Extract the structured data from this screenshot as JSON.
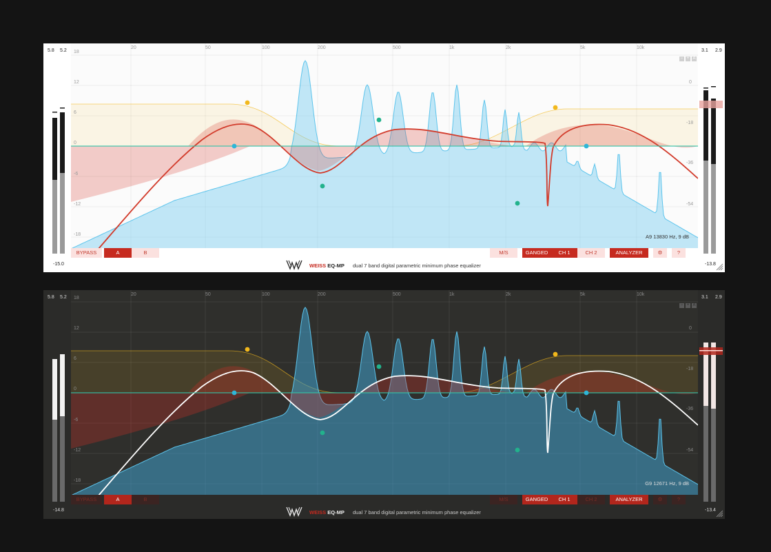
{
  "panels": [
    {
      "theme": "light",
      "left_meter": {
        "peak_l": "5.8",
        "peak_r": "5.2",
        "level": "-15.0"
      },
      "right_meter": {
        "peak_l": "3.1",
        "peak_r": "2.9",
        "level": "-13.8"
      },
      "freq_ticks": [
        "20",
        "50",
        "100",
        "200",
        "500",
        "1k",
        "2k",
        "5k",
        "10k"
      ],
      "db_left_ticks": [
        "18",
        "12",
        "6",
        "0",
        "-6",
        "-12",
        "-18"
      ],
      "db_right_ticks": [
        "0",
        "-18",
        "-36",
        "-54"
      ],
      "readout": "A9 13830 Hz, 9 dB",
      "buttons": {
        "bypass": "BYPASS",
        "a": "A",
        "b": "B",
        "ms": "M/S",
        "ganged": "GANGED",
        "ch1": "CH 1",
        "ch2": "CH 2",
        "analyzer": "ANALYZER",
        "settings": "⚙",
        "help": "?"
      },
      "window_buttons": [
        "−",
        "+",
        "A"
      ],
      "brand_weiss": "WEISS",
      "brand_product": "EQ-MP",
      "description": "dual 7 band digital parametric minimum phase equalizer"
    },
    {
      "theme": "dark",
      "left_meter": {
        "peak_l": "5.8",
        "peak_r": "5.2",
        "level": "-14.8"
      },
      "right_meter": {
        "peak_l": "3.1",
        "peak_r": "2.9",
        "level": "-13.4"
      },
      "freq_ticks": [
        "20",
        "50",
        "100",
        "200",
        "500",
        "1k",
        "2k",
        "5k",
        "10k"
      ],
      "db_left_ticks": [
        "18",
        "12",
        "6",
        "0",
        "-6",
        "-12",
        "-18"
      ],
      "db_right_ticks": [
        "0",
        "-18",
        "-36",
        "-54"
      ],
      "readout": "G9 12671 Hz, 9 dB",
      "buttons": {
        "bypass": "BYPASS",
        "a": "A",
        "b": "B",
        "ms": "M/S",
        "ganged": "GANGED",
        "ch1": "CH 1",
        "ch2": "CH 2",
        "analyzer": "ANALYZER",
        "settings": "⚙",
        "help": "?"
      },
      "window_buttons": [
        "−",
        "+",
        "A"
      ],
      "brand_weiss": "WEISS",
      "brand_product": "EQ-MP",
      "description": "dual 7 band digital parametric minimum phase equalizer"
    }
  ],
  "colors": {
    "accent_red": "#c62a1f",
    "eq_curve_light": "#d23a2a",
    "eq_curve_dark": "#ffffff",
    "spectrum_blue": "#5cc4ec",
    "node_yellow": "#f2b81c",
    "node_teal": "#22b28c",
    "node_cyan": "#2eb6d8",
    "zero_line": "#33c3a8"
  },
  "icons": {
    "logo": "weiss-logo-icon",
    "settings": "gear-icon",
    "help": "help-icon",
    "resize": "resize-grip-icon"
  }
}
